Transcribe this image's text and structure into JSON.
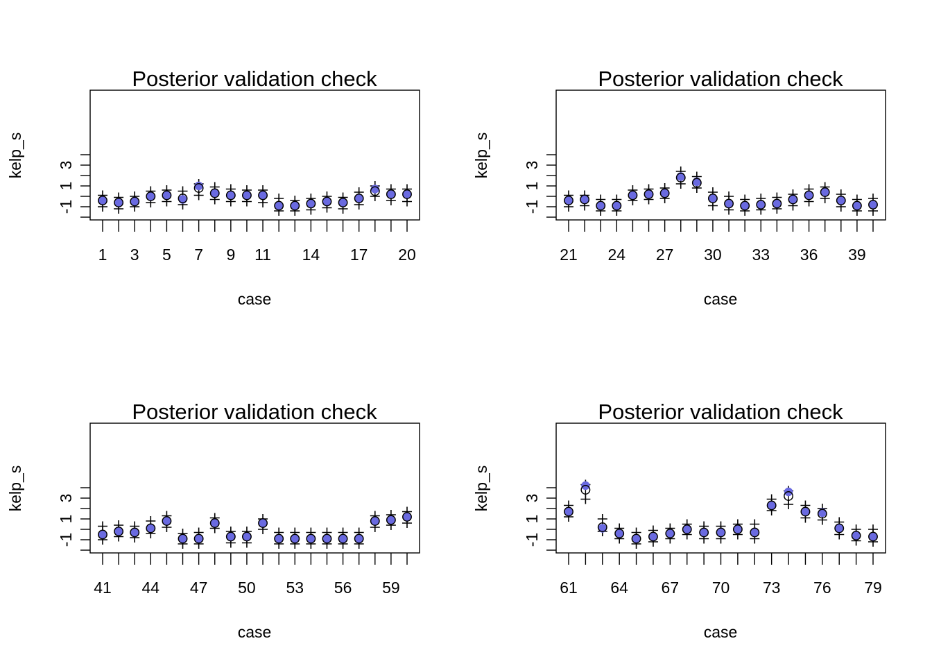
{
  "chart_data": [
    {
      "type": "scatter",
      "title": "Posterior validation check",
      "xlabel": "case",
      "ylabel": "kelp_s",
      "ylim": [
        -2.2,
        4.4
      ],
      "yticks": [
        -1,
        1,
        3
      ],
      "ytick_labels": [
        "-1",
        "1",
        "3"
      ],
      "xticks": [
        1,
        3,
        5,
        7,
        9,
        11,
        14,
        17,
        20
      ],
      "xtick_labels": [
        "1",
        "3",
        "5",
        "7",
        "9",
        "11",
        "14",
        "17",
        "20"
      ],
      "cases": [
        1,
        2,
        3,
        4,
        5,
        6,
        7,
        8,
        9,
        10,
        11,
        12,
        13,
        14,
        15,
        16,
        17,
        18,
        19,
        20
      ],
      "observed": [
        -0.4,
        -0.6,
        -0.5,
        0.0,
        0.1,
        -0.2,
        0.8,
        0.3,
        0.1,
        0.1,
        0.1,
        -0.9,
        -0.9,
        -0.7,
        -0.5,
        -0.6,
        -0.2,
        0.5,
        0.2,
        0.2
      ],
      "predicted": [
        -0.4,
        -0.6,
        -0.5,
        0.0,
        0.1,
        -0.3,
        1.0,
        0.3,
        0.1,
        0.1,
        0.1,
        -0.9,
        -0.9,
        -0.7,
        -0.5,
        -0.6,
        -0.2,
        0.7,
        0.2,
        0.2
      ],
      "lower": [
        -1.0,
        -1.2,
        -1.0,
        -0.6,
        -0.5,
        -0.8,
        0.1,
        -0.3,
        -0.5,
        -0.5,
        -0.6,
        -1.4,
        -1.4,
        -1.3,
        -1.1,
        -1.2,
        -0.8,
        0.0,
        -0.4,
        -0.5
      ],
      "upper": [
        0.1,
        -0.1,
        0.0,
        0.5,
        0.6,
        0.5,
        1.2,
        0.9,
        0.7,
        0.6,
        0.6,
        -0.2,
        -0.4,
        -0.2,
        0.0,
        -0.1,
        0.4,
        1.0,
        0.7,
        0.7
      ]
    },
    {
      "type": "scatter",
      "title": "Posterior validation check",
      "xlabel": "case",
      "ylabel": "kelp_s",
      "ylim": [
        -2.2,
        4.4
      ],
      "yticks": [
        -1,
        1,
        3
      ],
      "ytick_labels": [
        "-1",
        "1",
        "3"
      ],
      "xticks": [
        21,
        24,
        27,
        30,
        33,
        36,
        39
      ],
      "xtick_labels": [
        "21",
        "24",
        "27",
        "30",
        "33",
        "36",
        "39"
      ],
      "cases": [
        21,
        22,
        23,
        24,
        25,
        26,
        27,
        28,
        29,
        30,
        31,
        32,
        33,
        34,
        35,
        36,
        37,
        38,
        39,
        40
      ],
      "observed": [
        -0.4,
        -0.3,
        -0.9,
        -0.9,
        0.1,
        0.2,
        0.3,
        1.8,
        1.3,
        -0.2,
        -0.7,
        -0.9,
        -0.8,
        -0.7,
        -0.3,
        0.1,
        0.4,
        -0.4,
        -0.9,
        -0.8
      ],
      "predicted": [
        -0.4,
        -0.3,
        -0.9,
        -0.9,
        0.1,
        0.2,
        0.3,
        1.9,
        1.4,
        -0.2,
        -0.7,
        -0.9,
        -0.8,
        -0.7,
        -0.3,
        0.1,
        0.4,
        -0.4,
        -0.9,
        -0.8
      ],
      "lower": [
        -1.0,
        -0.9,
        -1.4,
        -1.4,
        -0.4,
        -0.3,
        -0.2,
        1.2,
        0.8,
        -0.9,
        -1.3,
        -1.4,
        -1.3,
        -1.2,
        -0.9,
        -0.5,
        -0.2,
        -1.0,
        -1.4,
        -1.4
      ],
      "upper": [
        0.1,
        0.1,
        -0.3,
        -0.3,
        0.6,
        0.7,
        0.8,
        2.4,
        1.9,
        0.4,
        0.0,
        -0.3,
        -0.2,
        -0.1,
        0.2,
        0.7,
        0.9,
        0.2,
        -0.3,
        -0.2
      ]
    },
    {
      "type": "scatter",
      "title": "Posterior validation check",
      "xlabel": "case",
      "ylabel": "kelp_s",
      "ylim": [
        -2.2,
        4.4
      ],
      "yticks": [
        -1,
        1,
        3
      ],
      "ytick_labels": [
        "-1",
        "1",
        "3"
      ],
      "xticks": [
        41,
        44,
        47,
        50,
        53,
        56,
        59
      ],
      "xtick_labels": [
        "41",
        "44",
        "47",
        "50",
        "53",
        "56",
        "59"
      ],
      "cases": [
        41,
        42,
        43,
        44,
        45,
        46,
        47,
        48,
        49,
        50,
        51,
        52,
        53,
        54,
        55,
        56,
        57,
        58,
        59,
        60
      ],
      "observed": [
        -0.5,
        -0.2,
        -0.3,
        0.1,
        0.8,
        -0.9,
        -0.9,
        0.6,
        -0.7,
        -0.7,
        0.6,
        -0.9,
        -0.9,
        -0.9,
        -0.9,
        -0.9,
        -0.9,
        0.8,
        0.9,
        1.2
      ],
      "predicted": [
        -0.5,
        -0.2,
        -0.3,
        0.1,
        0.8,
        -0.9,
        -0.9,
        0.6,
        -0.7,
        -0.7,
        0.6,
        -0.9,
        -0.9,
        -0.9,
        -0.9,
        -0.9,
        -0.9,
        0.8,
        0.9,
        1.2
      ],
      "lower": [
        -1.0,
        -0.7,
        -0.8,
        -0.4,
        0.2,
        -1.4,
        -1.4,
        0.1,
        -1.3,
        -1.3,
        0.0,
        -1.4,
        -1.4,
        -1.4,
        -1.4,
        -1.4,
        -1.4,
        0.2,
        0.4,
        0.6
      ],
      "upper": [
        0.3,
        0.4,
        0.3,
        0.8,
        1.3,
        -0.4,
        -0.3,
        1.1,
        -0.2,
        -0.2,
        1.0,
        -0.3,
        -0.3,
        -0.3,
        -0.3,
        -0.3,
        -0.3,
        1.3,
        1.4,
        1.7
      ]
    },
    {
      "type": "scatter",
      "title": "Posterior validation check",
      "xlabel": "case",
      "ylabel": "kelp_s",
      "ylim": [
        -2.2,
        4.4
      ],
      "yticks": [
        -1,
        1,
        3
      ],
      "ytick_labels": [
        "-1",
        "1",
        "3"
      ],
      "xticks": [
        61,
        64,
        67,
        70,
        73,
        76,
        79
      ],
      "xtick_labels": [
        "61",
        "64",
        "67",
        "70",
        "73",
        "76",
        "79"
      ],
      "cases": [
        61,
        62,
        63,
        64,
        65,
        66,
        67,
        68,
        69,
        70,
        71,
        72,
        73,
        74,
        75,
        76,
        77,
        78,
        79
      ],
      "observed": [
        1.7,
        3.8,
        0.2,
        -0.4,
        -0.9,
        -0.7,
        -0.4,
        0.0,
        -0.3,
        -0.3,
        0.0,
        -0.3,
        2.3,
        3.2,
        1.7,
        1.5,
        0.1,
        -0.6,
        -0.7
      ],
      "predicted": [
        1.7,
        4.2,
        0.1,
        -0.4,
        -0.9,
        -0.7,
        -0.4,
        0.0,
        -0.3,
        -0.3,
        0.0,
        -0.3,
        2.3,
        3.6,
        1.7,
        1.6,
        0.1,
        -0.6,
        -0.7
      ],
      "lower": [
        1.2,
        2.9,
        -0.2,
        -0.9,
        -1.4,
        -1.2,
        -0.9,
        -0.5,
        -0.9,
        -0.9,
        -0.5,
        -0.9,
        1.8,
        2.4,
        1.1,
        0.9,
        -0.5,
        -1.1,
        -1.2
      ],
      "upper": [
        2.3,
        4.3,
        1.0,
        0.1,
        -0.3,
        -0.1,
        0.1,
        0.5,
        0.3,
        0.3,
        0.5,
        0.5,
        2.9,
        3.7,
        2.3,
        2.0,
        0.7,
        0.0,
        0.0
      ]
    }
  ]
}
